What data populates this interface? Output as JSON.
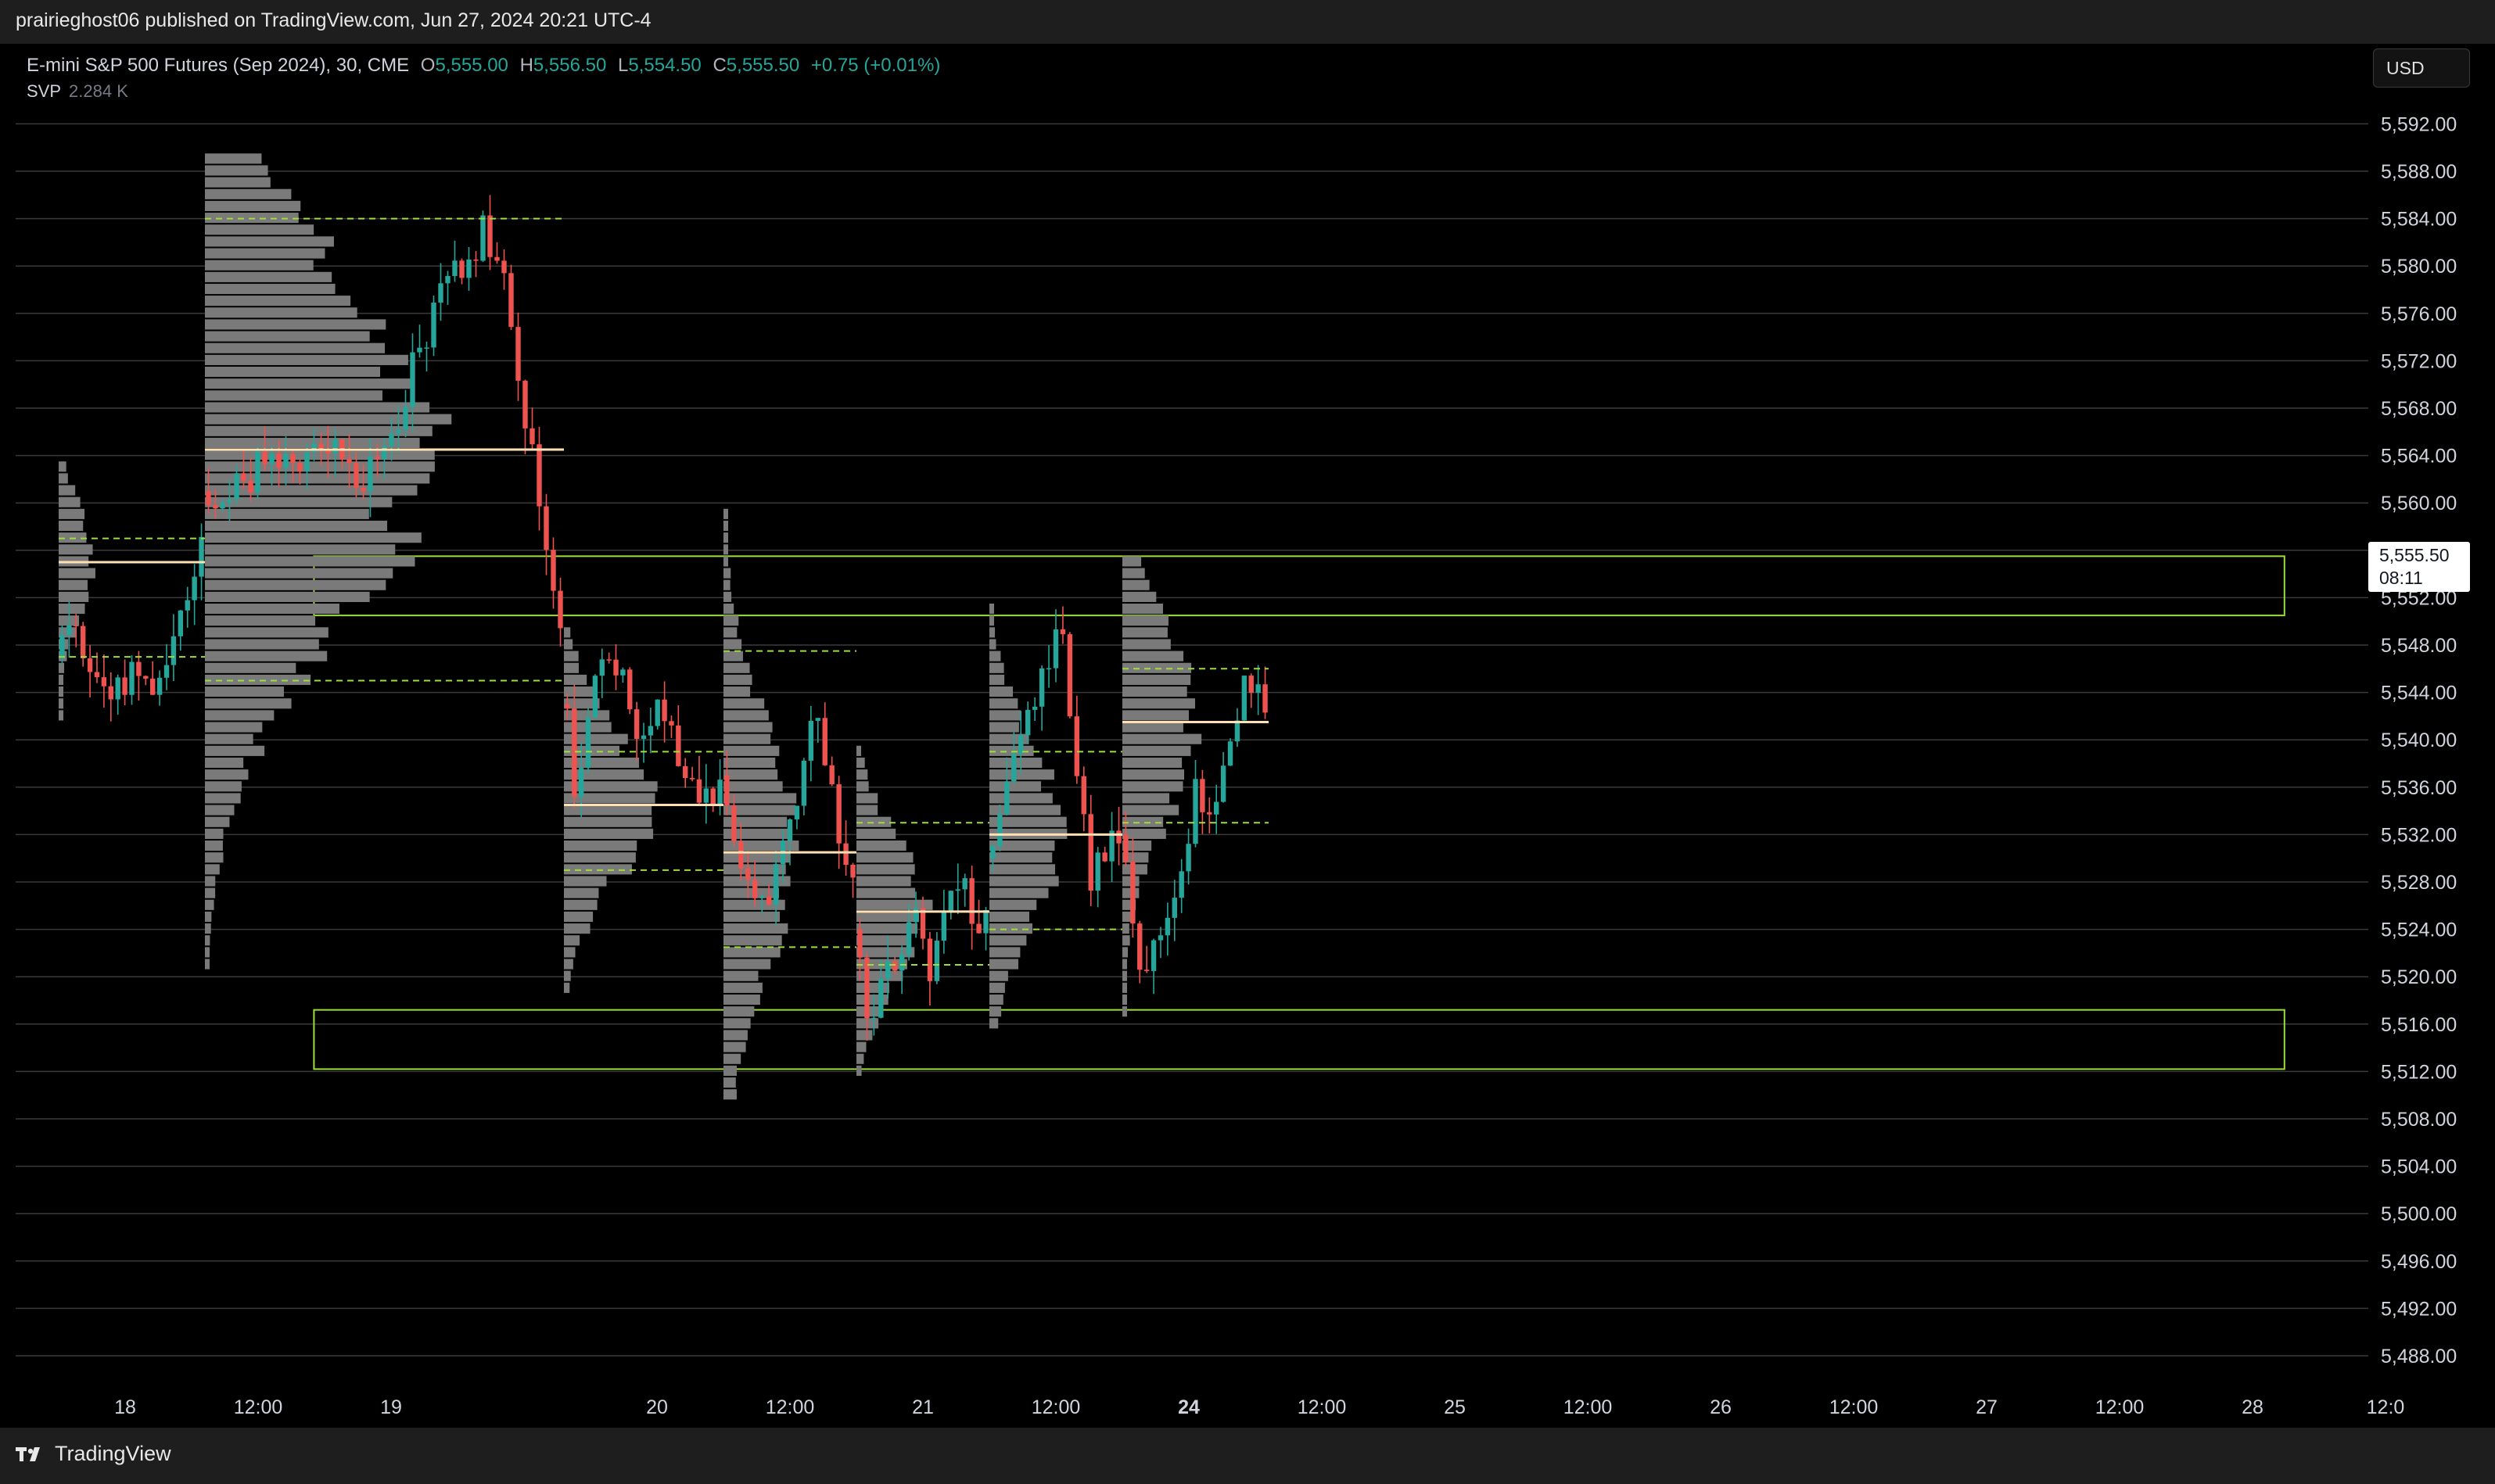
{
  "header": {
    "published_text": "prairieghost06 published on TradingView.com, Jun 27, 2024 20:21 UTC-4"
  },
  "legend": {
    "symbol": "E-mini S&P 500 Futures (Sep 2024), 30, CME",
    "o_label": "O",
    "o_value": "5,555.00",
    "h_label": "H",
    "h_value": "5,556.50",
    "l_label": "L",
    "l_value": "5,554.50",
    "c_label": "C",
    "c_value": "5,555.50",
    "change": "+0.75 (+0.01%)",
    "indicator_name": "SVP",
    "indicator_value": "2.284 K"
  },
  "currency_button": "USD",
  "last_price": {
    "price": "5,555.50",
    "countdown": "08:11"
  },
  "footer": {
    "brand": "TradingView"
  },
  "colors": {
    "up": "#26a69a",
    "down": "#ef5350",
    "poc": "#ffe0b2",
    "value_area": "#9cde3a",
    "zone": "#9cde3a",
    "profile": "#7a7a7a",
    "grid": "#3a3a3a",
    "axis_text": "#d1d4dc"
  },
  "chart_data": {
    "type": "candlestick",
    "y_axis": {
      "min": 5484,
      "max": 5596,
      "tick_step": 4,
      "tick_labels": [
        "5,592.00",
        "5,588.00",
        "5,584.00",
        "5,580.00",
        "5,576.00",
        "5,572.00",
        "5,568.00",
        "5,564.00",
        "5,560.00",
        "5,556.00",
        "5,552.00",
        "5,548.00",
        "5,544.00",
        "5,540.00",
        "5,536.00",
        "5,532.00",
        "5,528.00",
        "5,524.00",
        "5,520.00",
        "5,516.00",
        "5,512.00",
        "5,508.00",
        "5,504.00",
        "5,500.00",
        "5,496.00",
        "5,492.00",
        "5,488.00"
      ]
    },
    "x_axis": {
      "labels": [
        {
          "t": 0.25,
          "text": "18",
          "bold": false
        },
        {
          "t": 0.75,
          "text": "12:00",
          "bold": false
        },
        {
          "t": 1.25,
          "text": "19",
          "bold": false
        },
        {
          "t": 2.25,
          "text": "20",
          "bold": false
        },
        {
          "t": 2.75,
          "text": "12:00",
          "bold": false
        },
        {
          "t": 3.25,
          "text": "21",
          "bold": false
        },
        {
          "t": 3.75,
          "text": "12:00",
          "bold": false
        },
        {
          "t": 4.25,
          "text": "24",
          "bold": true
        },
        {
          "t": 4.75,
          "text": "12:00",
          "bold": false
        },
        {
          "t": 5.25,
          "text": "25",
          "bold": false
        },
        {
          "t": 5.75,
          "text": "12:00",
          "bold": false
        },
        {
          "t": 6.25,
          "text": "26",
          "bold": false
        },
        {
          "t": 6.75,
          "text": "12:00",
          "bold": false
        },
        {
          "t": 7.25,
          "text": "27",
          "bold": false
        },
        {
          "t": 7.75,
          "text": "12:00",
          "bold": false
        },
        {
          "t": 8.25,
          "text": "28",
          "bold": false
        },
        {
          "t": 8.75,
          "text": "12:0",
          "bold": false
        }
      ]
    },
    "sessions": [
      {
        "start": 0.0,
        "end": 0.55,
        "path": [
          [
            0,
            5547
          ],
          [
            0.05,
            5551
          ],
          [
            0.12,
            5546
          ],
          [
            0.2,
            5544
          ],
          [
            0.28,
            5546
          ],
          [
            0.36,
            5545
          ],
          [
            0.44,
            5549
          ],
          [
            0.5,
            5553
          ],
          [
            0.55,
            5560
          ]
        ],
        "poc": 5555,
        "vah": 5557,
        "val": 5547,
        "prof_high": 5563,
        "prof_low": 5542,
        "prof_max": 0.25
      },
      {
        "start": 0.55,
        "end": 1.9,
        "path": [
          [
            0.55,
            5561
          ],
          [
            0.7,
            5562
          ],
          [
            0.85,
            5564
          ],
          [
            1.05,
            5565
          ],
          [
            1.15,
            5562
          ],
          [
            1.22,
            5563
          ],
          [
            1.32,
            5571
          ],
          [
            1.45,
            5578
          ],
          [
            1.6,
            5583
          ],
          [
            1.68,
            5578
          ],
          [
            1.74,
            5568
          ],
          [
            1.8,
            5562
          ],
          [
            1.86,
            5552
          ],
          [
            1.9,
            5548
          ]
        ],
        "poc": 5564.5,
        "vah": 5584,
        "val": 5545,
        "prof_high": 5589,
        "prof_low": 5521,
        "prof_max": 0.65
      },
      {
        "start": 1.9,
        "end": 2.5,
        "path": [
          [
            1.9,
            5543
          ],
          [
            1.95,
            5535
          ],
          [
            2.02,
            5545
          ],
          [
            2.1,
            5547
          ],
          [
            2.18,
            5541
          ],
          [
            2.26,
            5544
          ],
          [
            2.34,
            5538
          ],
          [
            2.42,
            5536
          ],
          [
            2.5,
            5535
          ]
        ],
        "poc": 5534.5,
        "vah": 5539,
        "val": 5529,
        "prof_high": 5549,
        "prof_low": 5519,
        "prof_max": 0.55
      },
      {
        "start": 2.5,
        "end": 3.0,
        "path": [
          [
            2.5,
            5537
          ],
          [
            2.56,
            5530
          ],
          [
            2.62,
            5525
          ],
          [
            2.7,
            5528
          ],
          [
            2.78,
            5536
          ],
          [
            2.84,
            5543
          ],
          [
            2.9,
            5538
          ],
          [
            2.95,
            5530
          ],
          [
            3.0,
            5526
          ]
        ],
        "poc": 5530.5,
        "vah": 5547.5,
        "val": 5522.5,
        "prof_high": 5559,
        "prof_low": 5510,
        "prof_max": 0.55
      },
      {
        "start": 3.0,
        "end": 3.5,
        "path": [
          [
            3.0,
            5524
          ],
          [
            3.04,
            5516
          ],
          [
            3.1,
            5519
          ],
          [
            3.16,
            5522
          ],
          [
            3.22,
            5527
          ],
          [
            3.28,
            5520
          ],
          [
            3.34,
            5526
          ],
          [
            3.4,
            5528
          ],
          [
            3.46,
            5522
          ],
          [
            3.5,
            5525
          ]
        ],
        "poc": 5525.5,
        "vah": 5533,
        "val": 5521,
        "prof_high": 5539,
        "prof_low": 5512,
        "prof_max": 0.55
      },
      {
        "start": 3.5,
        "end": 4.0,
        "path": [
          [
            3.5,
            5530
          ],
          [
            3.56,
            5536
          ],
          [
            3.62,
            5540
          ],
          [
            3.7,
            5545
          ],
          [
            3.76,
            5550
          ],
          [
            3.82,
            5540
          ],
          [
            3.88,
            5528
          ],
          [
            3.94,
            5530
          ],
          [
            4.0,
            5532
          ]
        ],
        "poc": 5532,
        "vah": 5539,
        "val": 5524,
        "prof_high": 5551,
        "prof_low": 5516,
        "prof_max": 0.55
      },
      {
        "start": 4.0,
        "end": 4.55,
        "path": [
          [
            4.0,
            5532
          ],
          [
            4.06,
            5520
          ],
          [
            4.12,
            5524
          ],
          [
            4.2,
            5528
          ],
          [
            4.28,
            5536
          ],
          [
            4.36,
            5534
          ],
          [
            4.44,
            5544
          ],
          [
            4.5,
            5546
          ],
          [
            4.55,
            5541
          ]
        ],
        "poc": 5541.5,
        "vah": 5546,
        "val": 5533,
        "prof_high": 5555,
        "prof_low": 5517,
        "prof_max": 0.55
      }
    ],
    "zones": [
      {
        "top": 5555.5,
        "bottom": 5550.5,
        "t_start": 0.96,
        "t_end": 8.37
      },
      {
        "top": 5517.2,
        "bottom": 5512.2,
        "t_start": 0.96,
        "t_end": 8.37
      }
    ],
    "last_price": 5555.5
  }
}
